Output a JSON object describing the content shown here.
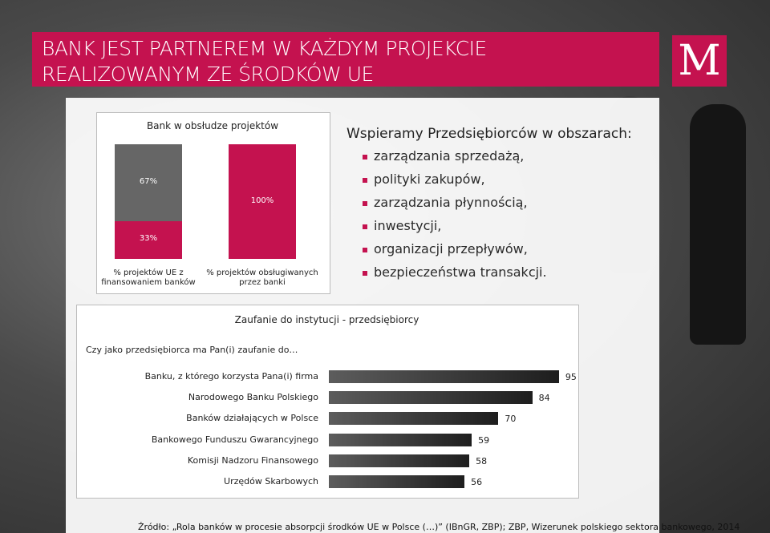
{
  "header": {
    "title": [
      "BANK JEST PARTNEREM W KAŻDYM PROJEKCIE",
      "REALIZOWANYM ZE ŚRODKÓW UE"
    ],
    "logo": "M"
  },
  "bullets": {
    "heading": "Wspieramy Przedsiębiorców w obszarach:",
    "items": [
      "zarządzania sprzedażą,",
      "polityki zakupów,",
      "zarządzania płynnością,",
      "inwestycji,",
      "organizacji przepływów,",
      "bezpieczeństwa transakcji."
    ]
  },
  "chart_data": [
    {
      "type": "bar",
      "stacked": true,
      "title": "Bank w obsłudze projektów",
      "categories": [
        "% projektów UE z finansowaniem banków",
        "% projektów obsługiwanych przez banki"
      ],
      "series": [
        {
          "color": "#c4124f",
          "values": [
            33,
            100
          ],
          "value_labels": [
            "33%",
            "100%"
          ]
        },
        {
          "color": "#666666",
          "values": [
            67,
            null
          ],
          "value_labels": [
            "67%",
            null
          ]
        }
      ],
      "ylim": [
        0,
        100
      ]
    },
    {
      "type": "bar",
      "orientation": "horizontal",
      "title": "Zaufanie do instytucji - przedsiębiorcy",
      "subtitle": "Czy jako przedsiębiorca ma Pan(i) zaufanie do…",
      "categories": [
        "Banku, z którego korzysta Pana(i) firma",
        "Narodowego Banku Polskiego",
        "Banków działających w Polsce",
        "Bankowego Funduszu Gwarancyjnego",
        "Komisji Nadzoru Finansowego",
        "Urzędów Skarbowych"
      ],
      "values": [
        95,
        84,
        70,
        59,
        58,
        56
      ],
      "color": "#1e1e1e",
      "xlim": [
        0,
        100
      ]
    }
  ],
  "source": "Źródło: „Rola banków w procesie absorpcji środków UE w Polsce (…)” (IBnGR, ZBP);   ZBP, Wizerunek polskiego sektora bankowego, 2014"
}
